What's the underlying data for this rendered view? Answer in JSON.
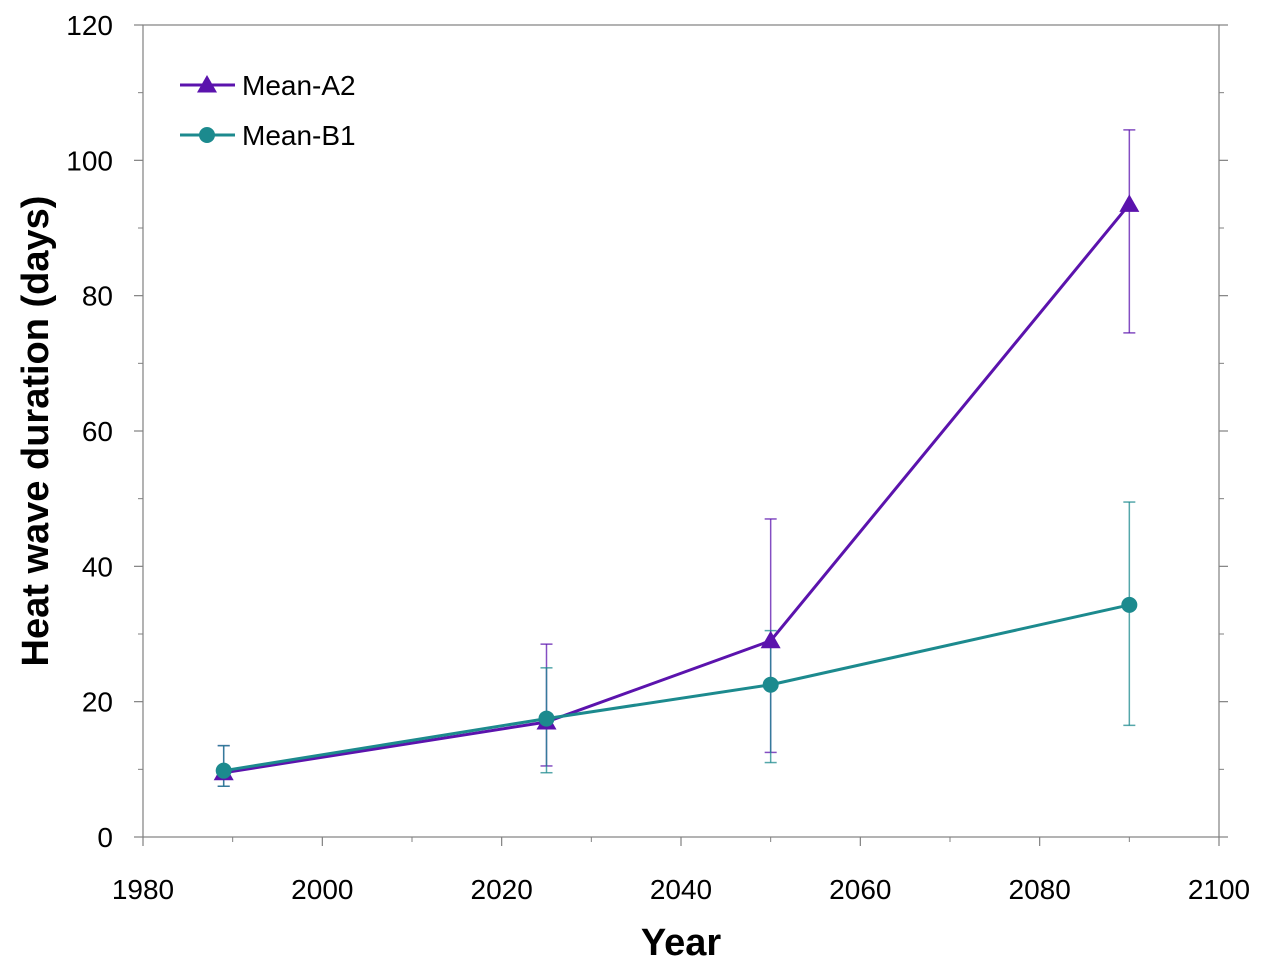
{
  "chart_data": {
    "type": "line",
    "title": "",
    "xlabel": "Year",
    "ylabel": "Heat wave duration (days)",
    "xlim": [
      1980,
      2100
    ],
    "ylim": [
      0,
      120
    ],
    "xticks": [
      1980,
      2000,
      2020,
      2040,
      2060,
      2080,
      2100
    ],
    "yticks": [
      0,
      20,
      40,
      60,
      80,
      100,
      120
    ],
    "x_minor_step": 10,
    "y_minor_step": 10,
    "grid": false,
    "legend_position": "top-left",
    "series": [
      {
        "name": "Mean-A2",
        "color": "#5b13ad",
        "marker": "triangle",
        "x": [
          1989,
          2025,
          2050,
          2090
        ],
        "y": [
          9.5,
          17,
          29,
          93.5
        ],
        "err_low": [
          7.5,
          10.5,
          12.5,
          74.5
        ],
        "err_high": [
          13.5,
          28.5,
          47,
          104.5
        ]
      },
      {
        "name": "Mean-B1",
        "color": "#1c8a8e",
        "marker": "circle",
        "x": [
          1989,
          2025,
          2050,
          2090
        ],
        "y": [
          9.8,
          17.5,
          22.5,
          34.3
        ],
        "err_low": [
          7.5,
          9.5,
          11,
          16.5
        ],
        "err_high": [
          13.5,
          25,
          30.5,
          49.5
        ]
      }
    ]
  }
}
